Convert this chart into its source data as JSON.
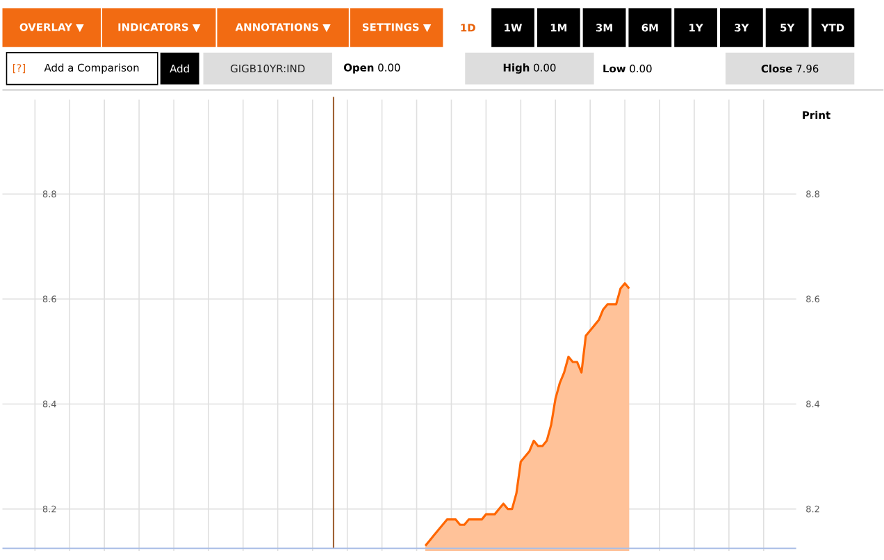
{
  "chart_data": {
    "type": "area",
    "categories": [
      null,
      null,
      null,
      null,
      null,
      null,
      null,
      null,
      null,
      null,
      null,
      null,
      null,
      null,
      null,
      null,
      null,
      null,
      null,
      null,
      null,
      null,
      null,
      null,
      null,
      null,
      null,
      null,
      null,
      null,
      null,
      null,
      null,
      null,
      null,
      null,
      null,
      null,
      null,
      null,
      null,
      null,
      null,
      null,
      null,
      null,
      null,
      null,
      null,
      null,
      null,
      null,
      null,
      null,
      null,
      null,
      null,
      null,
      null,
      null,
      null,
      null,
      null,
      null,
      null,
      null,
      null,
      null,
      null,
      null,
      null,
      null,
      null,
      null,
      null,
      null,
      null,
      null,
      null,
      null,
      null,
      null,
      null,
      null,
      null,
      null,
      null,
      null,
      null,
      null,
      null,
      null,
      null,
      null,
      null,
      null,
      null,
      null,
      null,
      null,
      null,
      null,
      null,
      null,
      null,
      null,
      null,
      null,
      null,
      null,
      null,
      null,
      null,
      null,
      null,
      null,
      null,
      null,
      null,
      null,
      null,
      null,
      null,
      null,
      null,
      null,
      null,
      null,
      null,
      null,
      null,
      null,
      null,
      null,
      null,
      null,
      null,
      null,
      null,
      null,
      null,
      null,
      null,
      null,
      null,
      null,
      null,
      null,
      null,
      null,
      null,
      null,
      null,
      null,
      null,
      null,
      null,
      null,
      null,
      null,
      null,
      null,
      null,
      null,
      null,
      null,
      null,
      null,
      null,
      null,
      null,
      null,
      null,
      null,
      null,
      null,
      null,
      null,
      null,
      null,
      null,
      null,
      null
    ],
    "ylim": [
      8.12,
      8.98
    ],
    "yticks": [
      8.2,
      8.4,
      8.6,
      8.8
    ],
    "y2lim": [
      8.12,
      8.98
    ],
    "y2ticks": [
      8.2,
      8.4,
      8.6,
      8.8
    ],
    "tick_labels": "y",
    "grid": true,
    "series": [
      {
        "color": "#ff6600",
        "values": [
          null,
          null,
          null,
          null,
          null,
          null,
          null,
          null,
          null,
          null,
          null,
          null,
          null,
          null,
          null,
          null,
          null,
          null,
          null,
          null,
          null,
          null,
          null,
          null,
          null,
          null,
          null,
          null,
          null,
          null,
          null,
          null,
          null,
          null,
          null,
          null,
          null,
          null,
          null,
          null,
          null,
          null,
          null,
          null,
          null,
          null,
          null,
          null,
          null,
          null,
          null,
          null,
          null,
          null,
          null,
          null,
          null,
          null,
          null,
          null,
          null,
          null,
          null,
          null,
          null,
          null,
          null,
          null,
          null,
          null,
          null,
          null,
          null,
          null,
          null,
          null,
          null,
          null,
          null,
          null,
          null,
          null,
          null,
          null,
          null,
          null,
          null,
          null,
          null,
          null,
          null,
          null,
          null,
          null,
          null,
          null,
          null,
          8.13,
          8.14,
          8.15,
          8.16,
          8.17,
          8.18,
          8.18,
          8.18,
          8.17,
          8.17,
          8.18,
          8.18,
          8.18,
          8.18,
          8.19,
          8.19,
          8.19,
          8.2,
          8.21,
          8.2,
          8.2,
          8.23,
          8.29,
          8.3,
          8.31,
          8.33,
          8.32,
          8.32,
          8.33,
          8.36,
          8.41,
          8.44,
          8.46,
          8.49,
          8.48,
          8.48,
          8.46,
          8.53,
          8.54,
          8.55,
          8.56,
          8.58,
          8.59,
          8.59,
          8.59,
          8.62,
          8.63,
          8.62,
          null,
          null,
          null,
          null,
          null,
          null,
          null,
          null,
          null,
          null,
          null,
          null,
          null,
          null,
          null,
          null,
          null,
          null,
          null,
          null,
          null,
          null,
          null,
          null,
          null,
          null,
          null,
          null,
          null,
          null,
          null,
          null,
          null,
          null,
          null,
          null,
          null,
          null
        ]
      }
    ],
    "annotations": [
      "OVERLAY ▼",
      "INDICATORS ▼",
      "ANNOTATIONS ▼",
      "SETTINGS ▼",
      "1D",
      "1W",
      "1M",
      "3M",
      "6M",
      "1Y",
      "3Y",
      "5Y",
      "YTD",
      "[?]",
      "Add a Comparison",
      "Add",
      "GIGB10YR:IND",
      "**Open** 0.00",
      "**High** 0.00",
      "**Low** 0.00",
      "**Close** 7.96",
      "Print"
    ]
  }
}
